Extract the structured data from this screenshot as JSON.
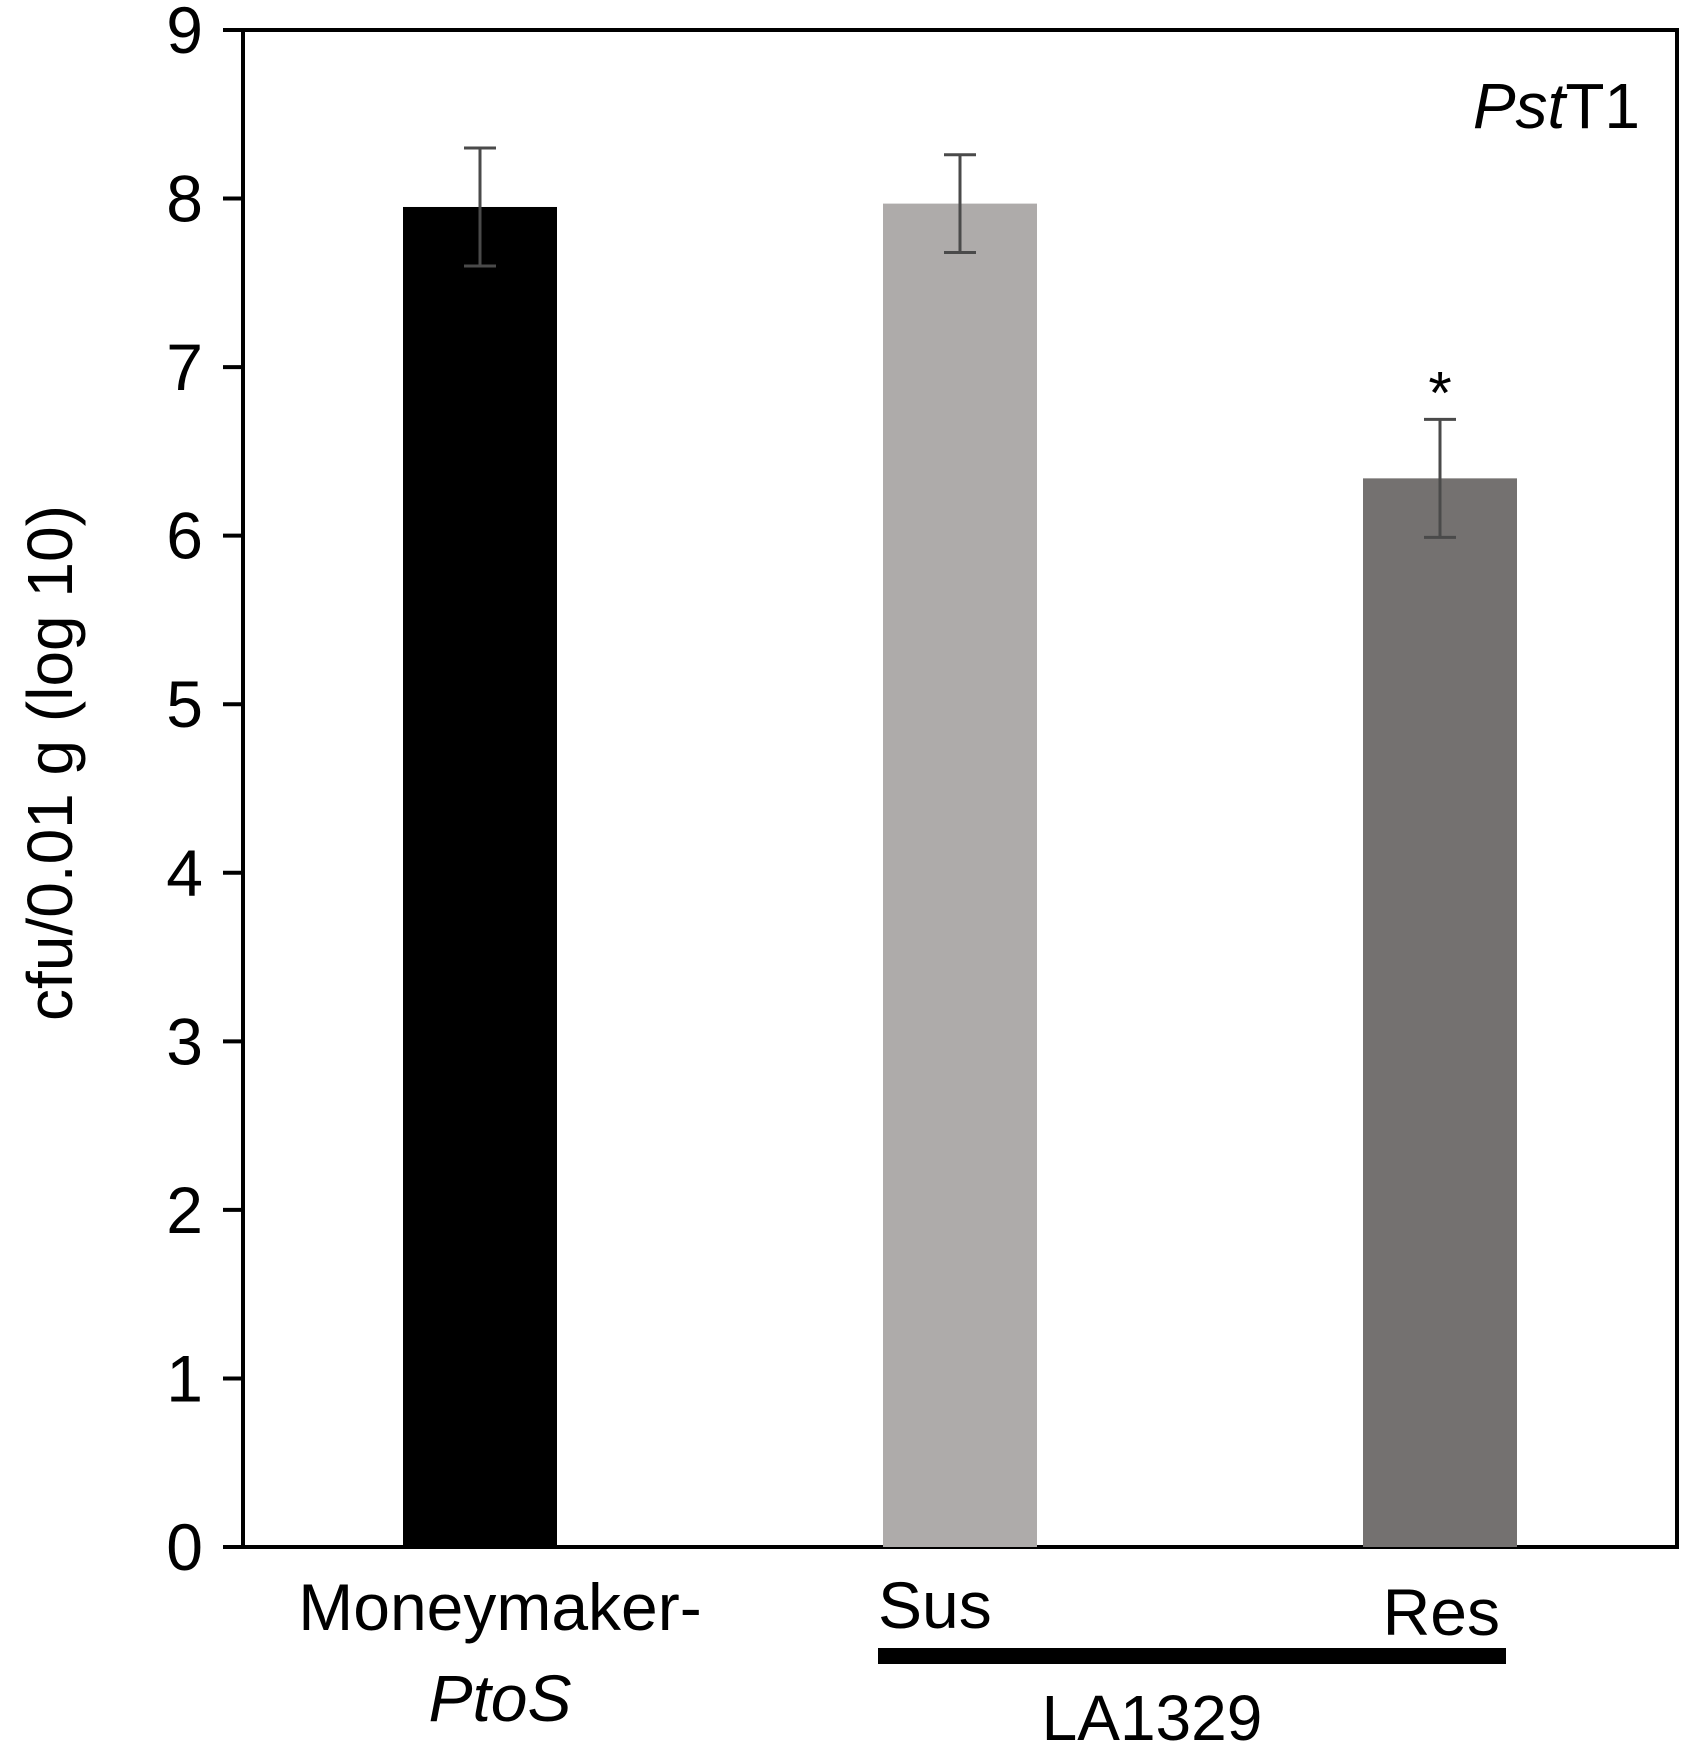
{
  "chart_data": {
    "type": "bar",
    "title_parts": {
      "italic": "Pst",
      "normal": "T1"
    },
    "ylabel": "cfu/0.01 g (log 10)",
    "ylim": [
      0,
      9
    ],
    "yticks": [
      "0",
      "1",
      "2",
      "3",
      "4",
      "5",
      "6",
      "7",
      "8",
      "9"
    ],
    "grid": false,
    "categories": [
      {
        "label_line1": "Moneymaker-",
        "label_line2_italic": "PtoS"
      },
      {
        "label_line1": "Sus",
        "label_line2_italic": ""
      },
      {
        "label_line1": "Res",
        "label_line2_italic": ""
      }
    ],
    "values": [
      7.95,
      7.97,
      6.34
    ],
    "errors": [
      0.35,
      0.29,
      0.35
    ],
    "colors": [
      "#000000",
      "#aeabaa",
      "#747170"
    ],
    "significance": [
      "",
      "",
      "*"
    ],
    "group_label": "LA1329",
    "group_members": [
      1,
      2
    ]
  }
}
